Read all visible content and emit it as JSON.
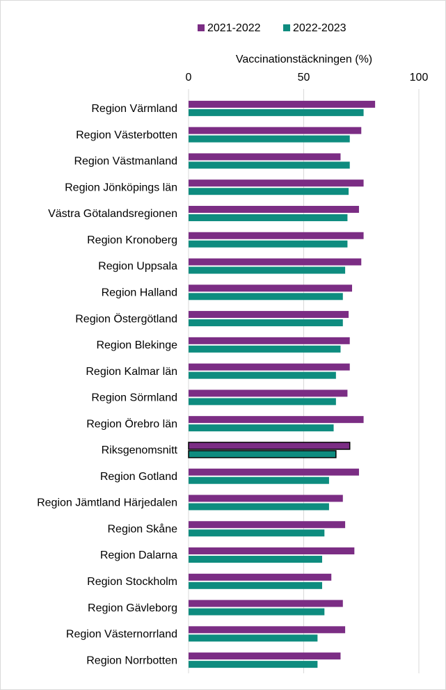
{
  "chart_data": {
    "type": "hbar",
    "x_label": "Vaccinationstäckningen (%)",
    "categories": [
      "Region Värmland",
      "Region Västerbotten",
      "Region Västmanland",
      "Region Jönköpings län",
      "Västra Götalandsregionen",
      "Region Kronoberg",
      "Region Uppsala",
      "Region Halland",
      "Region Östergötland",
      "Region Blekinge",
      "Region Kalmar län",
      "Region Sörmland",
      "Region Örebro län",
      "Riksgenomsnitt",
      "Region Gotland",
      "Region Jämtland Härjedalen",
      "Region Skåne",
      "Region Dalarna",
      "Region Stockholm",
      "Region Gävleborg",
      "Region Västernorrland",
      "Region Norrbotten"
    ],
    "series": [
      {
        "name": "2021-2022",
        "color": "#7b2d84",
        "values": [
          81,
          75,
          66,
          76,
          74,
          76,
          75,
          71,
          69.5,
          70,
          70,
          69,
          76,
          70,
          74,
          67,
          68,
          72,
          62,
          67,
          68,
          66
        ]
      },
      {
        "name": "2022-2023",
        "color": "#0e8c7f",
        "values": [
          76,
          70,
          70,
          69.5,
          69,
          69,
          68,
          67,
          67,
          66,
          64,
          64,
          63,
          64,
          61,
          61,
          59,
          58,
          58,
          59,
          56,
          56
        ]
      }
    ],
    "outlined_categories": [
      13
    ],
    "xlim": [
      0,
      100
    ],
    "xticks": [
      0,
      50,
      100
    ],
    "grid": true,
    "legend": "top"
  }
}
